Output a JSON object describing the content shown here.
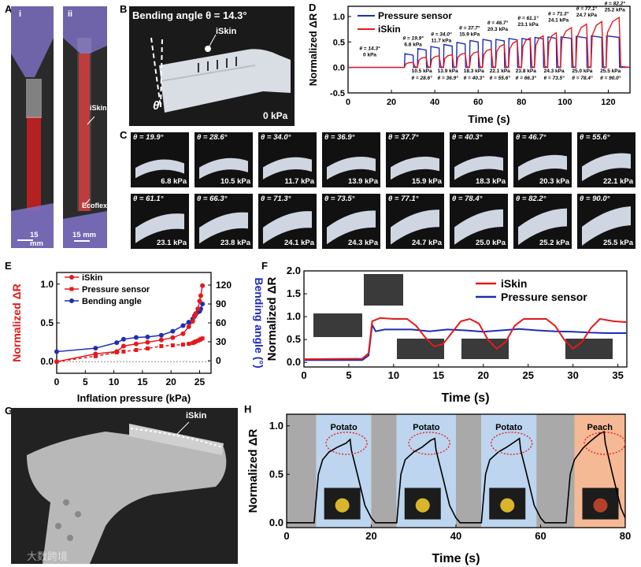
{
  "panels": {
    "A": {
      "label": "A",
      "sub_i": "i",
      "sub_ii": "ii",
      "scale_i": "15 mm",
      "scale_ii": "15 mm",
      "iskin": "iSkin",
      "ecoflex": "Ecoflex"
    },
    "B": {
      "label": "B",
      "title": "Bending angle θ = 14.3°",
      "iskin": "iSkin",
      "theta": "θ",
      "pressure": "0 kPa"
    },
    "C": {
      "label": "C",
      "cells": [
        {
          "angle": "θ = 19.9°",
          "kpa": "6.8 kPa",
          "deg": 19.9
        },
        {
          "angle": "θ = 28.6°",
          "kpa": "10.5 kPa",
          "deg": 28.6
        },
        {
          "angle": "θ = 34.0°",
          "kpa": "11.7 kPa",
          "deg": 34.0
        },
        {
          "angle": "θ = 36.9°",
          "kpa": "13.9 kPa",
          "deg": 36.9
        },
        {
          "angle": "θ = 37.7°",
          "kpa": "15.9 kPa",
          "deg": 37.7
        },
        {
          "angle": "θ = 40.3°",
          "kpa": "18.3 kPa",
          "deg": 40.3
        },
        {
          "angle": "θ = 46.7°",
          "kpa": "20.3 kPa",
          "deg": 46.7
        },
        {
          "angle": "θ = 55.6°",
          "kpa": "22.1 kPa",
          "deg": 55.6
        },
        {
          "angle": "θ = 61.1°",
          "kpa": "23.1 kPa",
          "deg": 61.1
        },
        {
          "angle": "θ = 66.3°",
          "kpa": "23.8 kPa",
          "deg": 66.3
        },
        {
          "angle": "θ = 71.3°",
          "kpa": "24.1 kPa",
          "deg": 71.3
        },
        {
          "angle": "θ = 73.5°",
          "kpa": "24.3 kPa",
          "deg": 73.5
        },
        {
          "angle": "θ = 77.1°",
          "kpa": "24.7 kPa",
          "deg": 77.1
        },
        {
          "angle": "θ = 78.4°",
          "kpa": "25.0 kPa",
          "deg": 78.4
        },
        {
          "angle": "θ = 82.2°",
          "kpa": "25.2 kPa",
          "deg": 82.2
        },
        {
          "angle": "θ = 90.0°",
          "kpa": "25.5 kPa",
          "deg": 90.0
        }
      ]
    },
    "G": {
      "label": "G",
      "iskin": "iSkin"
    },
    "watermark": "大数跨境"
  },
  "colors": {
    "red": "#e41a1c",
    "blue": "#1f2db4",
    "photo_bg": "#1b1b1b"
  },
  "chart_data": [
    {
      "id": "D",
      "type": "line",
      "label": "D",
      "xlabel": "Time (s)",
      "ylabel": "Normalized ΔR",
      "xlim": [
        0,
        130
      ],
      "ylim": [
        -0.5,
        1.2
      ],
      "xticks": [
        0,
        20,
        40,
        60,
        80,
        100,
        120
      ],
      "yticks": [
        -0.5,
        0.0,
        0.5,
        1.0
      ],
      "yticklabels": [
        "-0.5",
        "0.0",
        "0.5",
        "1.0"
      ],
      "legend": [
        "Pressure sensor",
        "iSkin"
      ],
      "steps": [
        {
          "t0": 26,
          "t1": 30,
          "iskin": 0.1,
          "pressure": 0.27
        },
        {
          "t0": 32,
          "t1": 36,
          "iskin": 0.2,
          "pressure": 0.37
        },
        {
          "t0": 38,
          "t1": 42,
          "iskin": 0.23,
          "pressure": 0.41
        },
        {
          "t0": 44,
          "t1": 48,
          "iskin": 0.25,
          "pressure": 0.45
        },
        {
          "t0": 50,
          "t1": 54,
          "iskin": 0.28,
          "pressure": 0.49
        },
        {
          "t0": 56,
          "t1": 60,
          "iskin": 0.31,
          "pressure": 0.53
        },
        {
          "t0": 62,
          "t1": 66,
          "iskin": 0.36,
          "pressure": 0.55
        },
        {
          "t0": 68,
          "t1": 72,
          "iskin": 0.45,
          "pressure": 0.55
        },
        {
          "t0": 74,
          "t1": 78,
          "iskin": 0.52,
          "pressure": 0.57
        },
        {
          "t0": 80,
          "t1": 84,
          "iskin": 0.58,
          "pressure": 0.57
        },
        {
          "t0": 86,
          "t1": 90,
          "iskin": 0.62,
          "pressure": 0.59
        },
        {
          "t0": 92,
          "t1": 96,
          "iskin": 0.68,
          "pressure": 0.6
        },
        {
          "t0": 98,
          "t1": 103,
          "iskin": 0.78,
          "pressure": 0.6
        },
        {
          "t0": 105,
          "t1": 110,
          "iskin": 0.85,
          "pressure": 0.61
        },
        {
          "t0": 112,
          "t1": 117,
          "iskin": 0.9,
          "pressure": 0.62
        },
        {
          "t0": 119,
          "t1": 125,
          "iskin": 0.98,
          "pressure": 0.62
        }
      ],
      "annotations_top": [
        {
          "x": 10,
          "y": 0.22,
          "angle": "θ = 14.3°",
          "kpa": "0 kPa"
        },
        {
          "x": 30,
          "y": 0.42,
          "angle": "θ = 19.9°",
          "kpa": "6.8 kPa"
        },
        {
          "x": 43,
          "y": 0.5,
          "angle": "θ = 34.0°",
          "kpa": "11.7 kPa"
        },
        {
          "x": 56,
          "y": 0.62,
          "angle": "θ = 37.7°",
          "kpa": "15.9 kPa"
        },
        {
          "x": 69,
          "y": 0.72,
          "angle": "θ = 46.7°",
          "kpa": "20.3 kPa"
        },
        {
          "x": 83,
          "y": 0.81,
          "angle": "θ = 61.1°",
          "kpa": "23.1 kPa"
        },
        {
          "x": 97,
          "y": 0.9,
          "angle": "θ = 71.3°",
          "kpa": "24.1 kPa"
        },
        {
          "x": 110,
          "y": 1.0,
          "angle": "θ = 77.1°",
          "kpa": "24.7 kPa"
        },
        {
          "x": 123,
          "y": 1.1,
          "angle": "θ = 82.2°",
          "kpa": "25.2 kPa"
        }
      ],
      "annotations_bottom": [
        {
          "x": 34,
          "kpa": "10.5 kPa",
          "angle": "θ = 28.6°"
        },
        {
          "x": 46,
          "kpa": "13.9 kPa",
          "angle": "θ = 36.9°"
        },
        {
          "x": 58,
          "kpa": "18.3 kPa",
          "angle": "θ = 40.3°"
        },
        {
          "x": 70,
          "kpa": "22.1 kPa",
          "angle": "θ = 55.6°"
        },
        {
          "x": 82,
          "kpa": "23.8 kPa",
          "angle": "θ = 66.3°"
        },
        {
          "x": 95,
          "kpa": "24.3 kPa",
          "angle": "θ = 73.5°"
        },
        {
          "x": 108,
          "kpa": "25.0 kPa",
          "angle": "θ = 78.4°"
        },
        {
          "x": 121,
          "kpa": "25.5 kPa",
          "angle": "θ = 90.0°"
        }
      ]
    },
    {
      "id": "E",
      "type": "line",
      "label": "E",
      "xlabel": "Inflation pressure (kPa)",
      "ylabel": "Normalized ΔR",
      "y2label": "Bending angle (°)",
      "xlim": [
        0,
        27
      ],
      "ylim": [
        -0.15,
        1.15
      ],
      "y2lim": [
        -20,
        140
      ],
      "xticks": [
        0,
        5,
        10,
        15,
        20,
        25
      ],
      "yticks": [
        0.0,
        0.5,
        1.0
      ],
      "yticklabels": [
        "0.0",
        "0.5",
        "1.0"
      ],
      "y2ticks": [
        0,
        30,
        60,
        90,
        120
      ],
      "legend": [
        "iSkin",
        "Pressure sensor",
        "Bending angle"
      ],
      "x": [
        0,
        6.8,
        10.5,
        11.7,
        13.9,
        15.9,
        18.3,
        20.3,
        22.1,
        23.1,
        23.8,
        24.1,
        24.3,
        24.7,
        25.0,
        25.2,
        25.5
      ],
      "iskin": [
        0,
        0.1,
        0.13,
        0.2,
        0.23,
        0.25,
        0.28,
        0.31,
        0.36,
        0.45,
        0.52,
        0.58,
        0.62,
        0.68,
        0.78,
        0.85,
        0.98
      ],
      "pressure": [
        0,
        0.07,
        0.12,
        0.13,
        0.15,
        0.17,
        0.2,
        0.21,
        0.22,
        0.23,
        0.24,
        0.25,
        0.26,
        0.27,
        0.28,
        0.29,
        0.3
      ],
      "angle": [
        14.3,
        19.9,
        28.6,
        34.0,
        36.9,
        37.7,
        40.3,
        46.7,
        55.6,
        61.1,
        66.3,
        71.3,
        73.5,
        77.1,
        78.4,
        82.2,
        90.0
      ]
    },
    {
      "id": "F",
      "type": "line",
      "label": "F",
      "xlabel": "Time (s)",
      "ylabel": "Normalized ΔR",
      "xlim": [
        0,
        36
      ],
      "ylim": [
        -0.1,
        2.0
      ],
      "xticks": [
        0,
        5,
        10,
        15,
        20,
        25,
        30,
        35
      ],
      "yticks": [
        0.0,
        0.5,
        1.0,
        1.5,
        2.0
      ],
      "yticklabels": [
        "0.0",
        "0.5",
        "1.0",
        "1.5",
        "2.0"
      ],
      "legend": [
        "iSkin",
        "Pressure sensor"
      ],
      "iskin": [
        [
          0,
          0.07
        ],
        [
          6.5,
          0.08
        ],
        [
          7.2,
          0.2
        ],
        [
          7.6,
          0.9
        ],
        [
          8.5,
          0.97
        ],
        [
          10,
          0.95
        ],
        [
          11.5,
          0.95
        ],
        [
          12.5,
          0.8
        ],
        [
          13.5,
          0.55
        ],
        [
          14.5,
          0.35
        ],
        [
          15.5,
          0.4
        ],
        [
          16.5,
          0.65
        ],
        [
          17.5,
          0.9
        ],
        [
          18.5,
          0.95
        ],
        [
          19.5,
          0.85
        ],
        [
          20.5,
          0.5
        ],
        [
          21.5,
          0.3
        ],
        [
          22.5,
          0.45
        ],
        [
          23.5,
          0.8
        ],
        [
          24.5,
          0.95
        ],
        [
          27,
          0.95
        ],
        [
          28,
          0.8
        ],
        [
          29,
          0.5
        ],
        [
          30,
          0.3
        ],
        [
          31,
          0.45
        ],
        [
          32,
          0.75
        ],
        [
          33,
          0.95
        ],
        [
          34.5,
          0.9
        ],
        [
          36,
          0.88
        ]
      ],
      "pressure": [
        [
          0,
          0.05
        ],
        [
          6.5,
          0.05
        ],
        [
          7.2,
          0.15
        ],
        [
          7.6,
          0.82
        ],
        [
          8,
          0.68
        ],
        [
          9,
          0.72
        ],
        [
          12,
          0.72
        ],
        [
          14,
          0.68
        ],
        [
          16,
          0.72
        ],
        [
          18,
          0.7
        ],
        [
          20,
          0.67
        ],
        [
          22,
          0.7
        ],
        [
          24,
          0.73
        ],
        [
          26,
          0.7
        ],
        [
          28,
          0.68
        ],
        [
          30,
          0.67
        ],
        [
          32,
          0.65
        ],
        [
          34,
          0.64
        ],
        [
          36,
          0.64
        ]
      ]
    },
    {
      "id": "H",
      "type": "line",
      "label": "H",
      "xlabel": "Time (s)",
      "ylabel": "Normalized ΔR",
      "xlim": [
        0,
        80
      ],
      "ylim": [
        -0.05,
        1.12
      ],
      "xticks": [
        0,
        20,
        40,
        60,
        80
      ],
      "yticks": [
        0.0,
        0.5,
        1.0
      ],
      "yticklabels": [
        "0.0",
        "0.5",
        "1.0"
      ],
      "objects": [
        {
          "name": "Potato",
          "t0": 7,
          "t1": 20
        },
        {
          "name": "Potato",
          "t0": 26,
          "t1": 40
        },
        {
          "name": "Potato",
          "t0": 46,
          "t1": 59
        },
        {
          "name": "Peach",
          "t0": 68,
          "t1": 81
        }
      ],
      "gray_bands": [
        [
          0,
          7
        ],
        [
          20,
          26
        ],
        [
          40,
          46
        ],
        [
          59,
          68
        ]
      ],
      "series": [
        [
          0,
          0.0
        ],
        [
          6.5,
          0.0
        ],
        [
          7.5,
          0.5
        ],
        [
          8.5,
          0.65
        ],
        [
          10,
          0.73
        ],
        [
          12,
          0.78
        ],
        [
          14,
          0.82
        ],
        [
          15,
          0.86
        ],
        [
          15.3,
          0.75
        ],
        [
          17,
          0.45
        ],
        [
          18.5,
          0.18
        ],
        [
          20,
          0.05
        ],
        [
          21,
          0.0
        ],
        [
          26,
          0.0
        ],
        [
          27,
          0.5
        ],
        [
          28,
          0.65
        ],
        [
          30,
          0.73
        ],
        [
          32,
          0.78
        ],
        [
          34,
          0.85
        ],
        [
          35,
          0.87
        ],
        [
          35.3,
          0.75
        ],
        [
          37,
          0.45
        ],
        [
          38.5,
          0.18
        ],
        [
          40,
          0.05
        ],
        [
          41,
          0.0
        ],
        [
          46,
          0.0
        ],
        [
          47,
          0.5
        ],
        [
          48,
          0.65
        ],
        [
          50,
          0.73
        ],
        [
          52,
          0.78
        ],
        [
          54,
          0.84
        ],
        [
          55,
          0.87
        ],
        [
          55.3,
          0.75
        ],
        [
          57,
          0.45
        ],
        [
          58.5,
          0.18
        ],
        [
          60,
          0.05
        ],
        [
          61,
          0.0
        ],
        [
          66,
          0.0
        ],
        [
          67,
          0.5
        ],
        [
          68,
          0.65
        ],
        [
          70,
          0.77
        ],
        [
          72,
          0.85
        ],
        [
          74,
          0.92
        ],
        [
          75,
          0.94
        ],
        [
          75.3,
          0.82
        ],
        [
          77,
          0.5
        ],
        [
          79,
          0.15
        ],
        [
          80,
          0.05
        ]
      ]
    }
  ]
}
